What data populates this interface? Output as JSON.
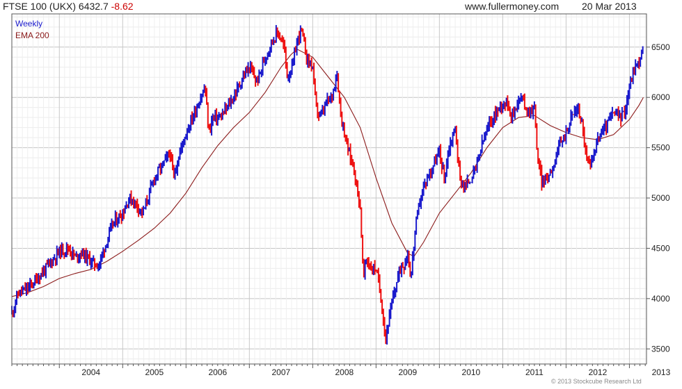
{
  "header": {
    "title": "FTSE 100 (UKX) 6432.7",
    "change": "-8.62",
    "site": "www.fullermoney.com",
    "date": "20 Mar 2013"
  },
  "footer": {
    "copyright": "© 2013 Stockcube Research Ltd"
  },
  "colors": {
    "up": "#1a1acc",
    "down": "#ee1111",
    "ema": "#8b1a1a",
    "grid": "#d8d8d8",
    "frame": "#555555"
  },
  "chart_data": {
    "type": "line",
    "title": "FTSE 100 (UKX)",
    "legend": [
      "Weekly",
      "EMA 200"
    ],
    "legend_position": "top-left",
    "grid": true,
    "y_axis_side": "right",
    "ylim": [
      3350,
      6830
    ],
    "y_ticks": [
      3500,
      4000,
      4500,
      5000,
      5500,
      6000,
      6500
    ],
    "x_range": [
      2003.25,
      2013.27
    ],
    "x_ticks": [
      {
        "x": 2004,
        "label": "2004"
      },
      {
        "x": 2005,
        "label": "2005"
      },
      {
        "x": 2006,
        "label": "2006"
      },
      {
        "x": 2007,
        "label": "2007"
      },
      {
        "x": 2008,
        "label": "2008"
      },
      {
        "x": 2009,
        "label": "2009"
      },
      {
        "x": 2010,
        "label": "2010"
      },
      {
        "x": 2011,
        "label": "2011"
      },
      {
        "x": 2012,
        "label": "2012"
      },
      {
        "x": 2013,
        "label": "2013"
      }
    ],
    "series": [
      {
        "name": "Weekly",
        "style": "bars",
        "points": [
          [
            2003.25,
            3860
          ],
          [
            2003.35,
            4050
          ],
          [
            2003.5,
            4100
          ],
          [
            2003.65,
            4200
          ],
          [
            2003.85,
            4350
          ],
          [
            2004.0,
            4470
          ],
          [
            2004.15,
            4500
          ],
          [
            2004.25,
            4410
          ],
          [
            2004.35,
            4460
          ],
          [
            2004.45,
            4400
          ],
          [
            2004.55,
            4350
          ],
          [
            2004.62,
            4330
          ],
          [
            2004.72,
            4520
          ],
          [
            2004.85,
            4750
          ],
          [
            2005.0,
            4850
          ],
          [
            2005.1,
            5000
          ],
          [
            2005.2,
            4950
          ],
          [
            2005.32,
            4850
          ],
          [
            2005.5,
            5200
          ],
          [
            2005.65,
            5350
          ],
          [
            2005.75,
            5450
          ],
          [
            2005.8,
            5200
          ],
          [
            2005.9,
            5450
          ],
          [
            2006.0,
            5650
          ],
          [
            2006.2,
            5950
          ],
          [
            2006.3,
            6100
          ],
          [
            2006.36,
            5650
          ],
          [
            2006.42,
            5800
          ],
          [
            2006.55,
            5800
          ],
          [
            2006.65,
            5900
          ],
          [
            2006.75,
            6000
          ],
          [
            2006.9,
            6200
          ],
          [
            2007.0,
            6300
          ],
          [
            2007.12,
            6150
          ],
          [
            2007.25,
            6400
          ],
          [
            2007.35,
            6550
          ],
          [
            2007.45,
            6650
          ],
          [
            2007.55,
            6500
          ],
          [
            2007.6,
            6200
          ],
          [
            2007.68,
            6300
          ],
          [
            2007.75,
            6550
          ],
          [
            2007.82,
            6680
          ],
          [
            2007.9,
            6400
          ],
          [
            2008.0,
            6300
          ],
          [
            2008.05,
            5900
          ],
          [
            2008.12,
            5800
          ],
          [
            2008.22,
            5950
          ],
          [
            2008.3,
            6000
          ],
          [
            2008.38,
            6250
          ],
          [
            2008.45,
            5800
          ],
          [
            2008.55,
            5500
          ],
          [
            2008.65,
            5300
          ],
          [
            2008.75,
            4900
          ],
          [
            2008.8,
            4200
          ],
          [
            2008.85,
            4400
          ],
          [
            2008.92,
            4300
          ],
          [
            2009.0,
            4300
          ],
          [
            2009.08,
            4000
          ],
          [
            2009.15,
            3600
          ],
          [
            2009.22,
            3850
          ],
          [
            2009.3,
            4100
          ],
          [
            2009.38,
            4300
          ],
          [
            2009.45,
            4350
          ],
          [
            2009.5,
            4450
          ],
          [
            2009.55,
            4200
          ],
          [
            2009.62,
            4700
          ],
          [
            2009.7,
            5000
          ],
          [
            2009.78,
            5150
          ],
          [
            2009.88,
            5300
          ],
          [
            2010.0,
            5450
          ],
          [
            2010.08,
            5200
          ],
          [
            2010.15,
            5500
          ],
          [
            2010.25,
            5700
          ],
          [
            2010.32,
            5200
          ],
          [
            2010.4,
            5100
          ],
          [
            2010.5,
            5200
          ],
          [
            2010.58,
            5300
          ],
          [
            2010.68,
            5550
          ],
          [
            2010.8,
            5750
          ],
          [
            2010.9,
            5850
          ],
          [
            2011.0,
            5950
          ],
          [
            2011.08,
            5950
          ],
          [
            2011.15,
            5800
          ],
          [
            2011.22,
            5950
          ],
          [
            2011.3,
            6000
          ],
          [
            2011.4,
            5850
          ],
          [
            2011.5,
            5900
          ],
          [
            2011.55,
            5400
          ],
          [
            2011.62,
            5150
          ],
          [
            2011.7,
            5200
          ],
          [
            2011.78,
            5300
          ],
          [
            2011.85,
            5450
          ],
          [
            2011.92,
            5550
          ],
          [
            2012.0,
            5650
          ],
          [
            2012.08,
            5800
          ],
          [
            2012.18,
            5900
          ],
          [
            2012.25,
            5750
          ],
          [
            2012.32,
            5400
          ],
          [
            2012.38,
            5300
          ],
          [
            2012.45,
            5500
          ],
          [
            2012.55,
            5650
          ],
          [
            2012.62,
            5700
          ],
          [
            2012.7,
            5800
          ],
          [
            2012.78,
            5850
          ],
          [
            2012.85,
            5800
          ],
          [
            2012.92,
            5850
          ],
          [
            2013.0,
            6100
          ],
          [
            2013.08,
            6300
          ],
          [
            2013.15,
            6350
          ],
          [
            2013.2,
            6450
          ],
          [
            2013.22,
            6500
          ]
        ]
      },
      {
        "name": "EMA 200",
        "style": "line",
        "points": [
          [
            2003.25,
            4020
          ],
          [
            2003.5,
            4060
          ],
          [
            2003.75,
            4120
          ],
          [
            2004.0,
            4200
          ],
          [
            2004.25,
            4250
          ],
          [
            2004.5,
            4290
          ],
          [
            2004.75,
            4370
          ],
          [
            2005.0,
            4470
          ],
          [
            2005.25,
            4580
          ],
          [
            2005.5,
            4700
          ],
          [
            2005.75,
            4850
          ],
          [
            2006.0,
            5050
          ],
          [
            2006.25,
            5300
          ],
          [
            2006.5,
            5520
          ],
          [
            2006.75,
            5700
          ],
          [
            2007.0,
            5850
          ],
          [
            2007.25,
            6050
          ],
          [
            2007.5,
            6300
          ],
          [
            2007.65,
            6420
          ],
          [
            2007.75,
            6480
          ],
          [
            2008.0,
            6400
          ],
          [
            2008.25,
            6200
          ],
          [
            2008.5,
            6000
          ],
          [
            2008.75,
            5700
          ],
          [
            2009.0,
            5200
          ],
          [
            2009.25,
            4750
          ],
          [
            2009.5,
            4450
          ],
          [
            2009.6,
            4420
          ],
          [
            2009.75,
            4560
          ],
          [
            2010.0,
            4850
          ],
          [
            2010.25,
            5050
          ],
          [
            2010.5,
            5250
          ],
          [
            2010.75,
            5500
          ],
          [
            2011.0,
            5700
          ],
          [
            2011.25,
            5800
          ],
          [
            2011.5,
            5820
          ],
          [
            2011.75,
            5720
          ],
          [
            2012.0,
            5650
          ],
          [
            2012.25,
            5600
          ],
          [
            2012.5,
            5580
          ],
          [
            2012.75,
            5630
          ],
          [
            2013.0,
            5780
          ],
          [
            2013.15,
            5920
          ],
          [
            2013.22,
            6000
          ]
        ]
      }
    ]
  }
}
